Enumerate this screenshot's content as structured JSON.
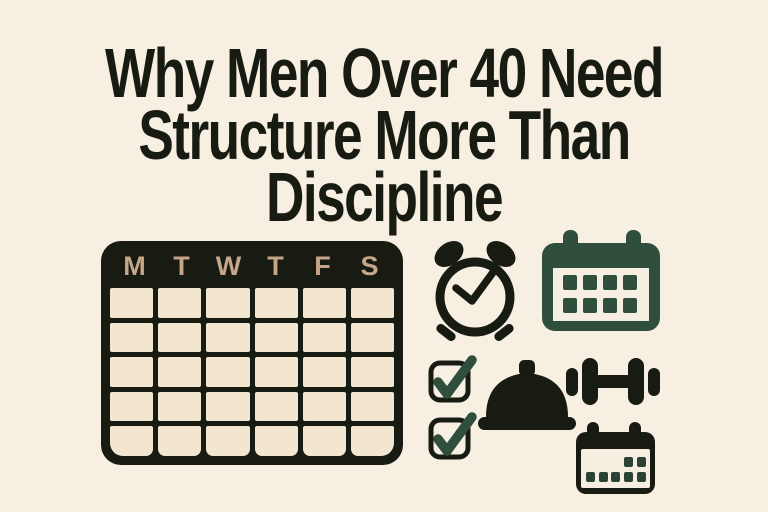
{
  "title": {
    "line1": "Why Men Over 40 Need",
    "line2": "Structure More Than",
    "line3": "Discipline"
  },
  "calendar": {
    "day_headers": [
      "M",
      "T",
      "W",
      "T",
      "F",
      "S"
    ],
    "rows": 5,
    "columns": 6
  },
  "icons": {
    "alarm_clock": "alarm-clock-icon",
    "month_calendar": "month-calendar-icon",
    "checkbox_top": "checkbox-checked-icon",
    "checkbox_bottom": "checkbox-checked-icon",
    "meal_cloche": "meal-cloche-icon",
    "dumbbell": "dumbbell-icon",
    "mini_calendar": "mini-calendar-icon"
  },
  "colors": {
    "background": "#f7f0e2",
    "ink": "#181b11",
    "green": "#2f4f3c",
    "green_deep": "#2a4334",
    "tan": "#c6a689",
    "cell": "#f3e6d1",
    "window": "#f6efe1"
  }
}
